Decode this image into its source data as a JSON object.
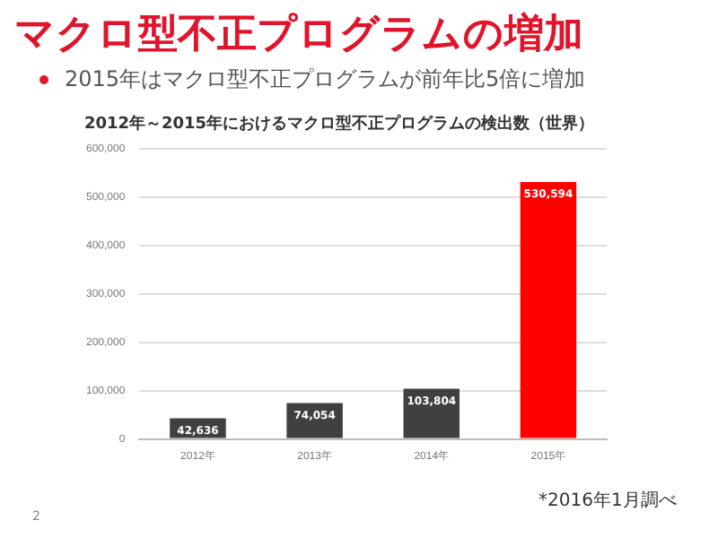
{
  "chart_data": {
    "type": "bar",
    "title": "2012年～2015年におけるマクロ型不正プログラムの検出数（世界）",
    "annotations": [
      "マクロ型不正プログラムの増加",
      "2015年はマクロ型不正プログラムが前年比5倍に増加",
      "*2016年1月調べ",
      "2"
    ],
    "categories": [
      "2012年",
      "2013年",
      "2014年",
      "2015年"
    ],
    "values": [
      42636,
      74054,
      103804,
      530594
    ],
    "colors": [
      "#404040",
      "#404040",
      "#404040",
      "#ff0000"
    ],
    "ylim": [
      0,
      600000
    ],
    "yticks": [
      {
        "value": 0,
        "label": "0"
      },
      {
        "value": 100000,
        "label": "100,000"
      },
      {
        "value": 200000,
        "label": "200,000"
      },
      {
        "value": 300000,
        "label": "300,000"
      },
      {
        "value": 400000,
        "label": "400,000"
      },
      {
        "value": 500000,
        "label": "500,000"
      },
      {
        "value": 600000,
        "label": "600,000"
      }
    ],
    "value_labels": [
      "42,636",
      "74,054",
      "103,804",
      "530,594"
    ],
    "grid": "y",
    "legend": false
  }
}
